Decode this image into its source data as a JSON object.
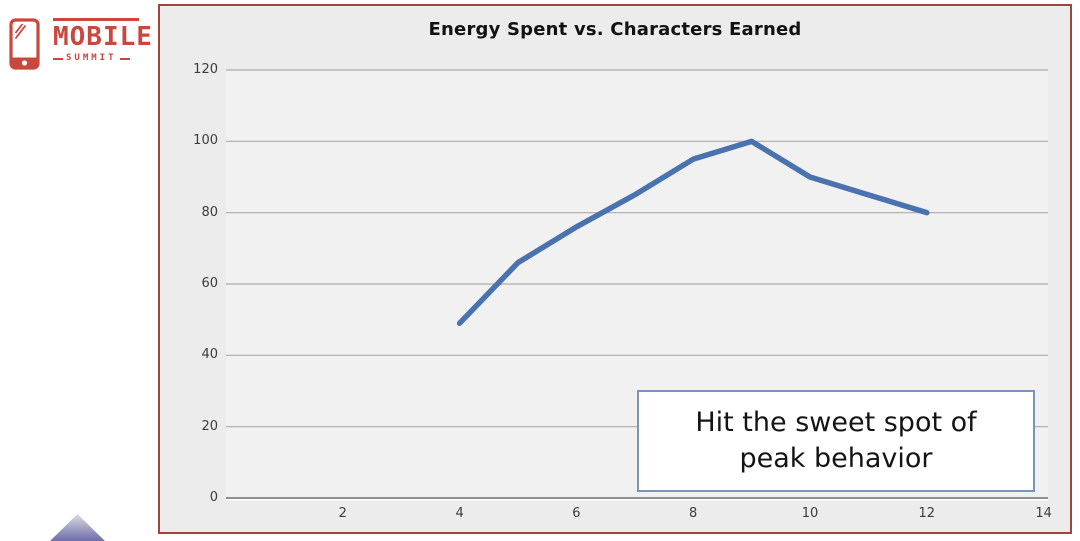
{
  "logo": {
    "brand": "MOBILE",
    "sub": "SUMMIT",
    "color": "#c9473c"
  },
  "chart": {
    "border_color": "#9e453c",
    "background": "#ececec"
  },
  "chart_data": {
    "type": "line",
    "title": "Energy Spent vs. Characters Earned",
    "x": [
      4,
      5,
      6,
      7,
      8,
      9,
      10,
      11,
      12
    ],
    "values": [
      49,
      66,
      76,
      85,
      95,
      100,
      90,
      85,
      80
    ],
    "xlabel": "",
    "ylabel": "",
    "xlim": [
      0,
      14
    ],
    "ylim": [
      0,
      120
    ],
    "x_ticks": [
      2,
      4,
      6,
      8,
      10,
      12,
      14
    ],
    "y_ticks": [
      0,
      20,
      40,
      60,
      80,
      100,
      120
    ],
    "grid": "horizontal-only",
    "legend": "none",
    "line_color": "#4a72ae",
    "annotation": {
      "line1": "Hit the sweet spot of",
      "line2": "peak behavior"
    }
  }
}
